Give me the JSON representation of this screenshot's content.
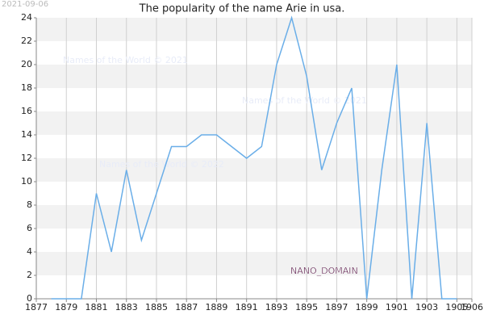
{
  "chart_data": {
    "type": "line",
    "title": "The popularity of the name Arie in usa.",
    "date_label": "2021-09-06",
    "watermarks": [
      "Names of the World © 2021",
      "Names of the World © 2021",
      "Names of the World © 2022"
    ],
    "badge": "NANO_DOMAIN",
    "x": [
      1878,
      1879,
      1880,
      1881,
      1882,
      1883,
      1884,
      1885,
      1886,
      1887,
      1888,
      1889,
      1890,
      1891,
      1892,
      1893,
      1894,
      1895,
      1896,
      1897,
      1898,
      1899,
      1900,
      1901,
      1902,
      1903,
      1904,
      1905
    ],
    "series": [
      {
        "color": "#6aaee8",
        "values": [
          0,
          0,
          0,
          9,
          4,
          11,
          5,
          9,
          13,
          13,
          14,
          14,
          13,
          12,
          13,
          20,
          24,
          19,
          11,
          15,
          18,
          0,
          11,
          20,
          0,
          15,
          0,
          0
        ]
      }
    ],
    "xlim": [
      1877,
      1906
    ],
    "xticks": [
      1877,
      1879,
      1881,
      1883,
      1885,
      1887,
      1889,
      1891,
      1893,
      1895,
      1897,
      1899,
      1901,
      1903,
      1905,
      1906
    ],
    "ylim": [
      0,
      24
    ],
    "yticks": [
      0,
      2,
      4,
      6,
      8,
      10,
      12,
      14,
      16,
      18,
      20,
      22,
      24
    ],
    "grid": true
  }
}
